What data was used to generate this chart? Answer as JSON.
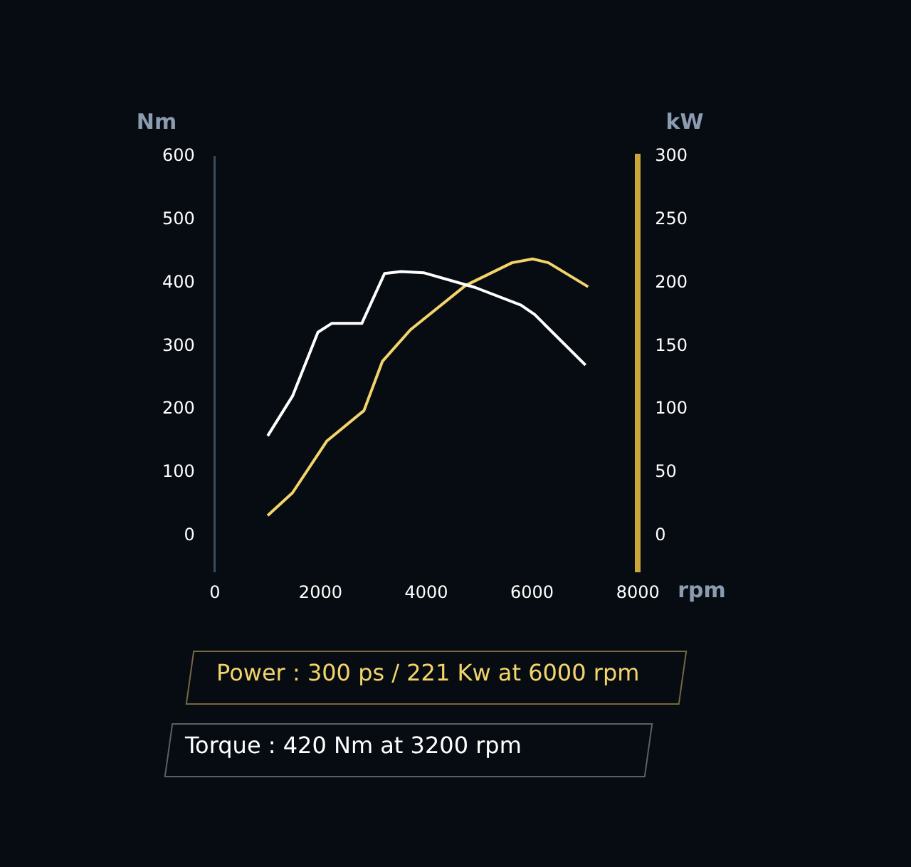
{
  "chart_data": {
    "type": "line",
    "xlabel": "rpm",
    "ylabel": "Nm",
    "y2label": "kW",
    "xlim": [
      0,
      8000
    ],
    "xticks": [
      0,
      2000,
      4000,
      6000,
      8000
    ],
    "ylim": [
      -57,
      600
    ],
    "yticks": [
      0,
      100,
      200,
      300,
      400,
      500,
      600
    ],
    "y2lim": [
      -28.5,
      300
    ],
    "y2ticks": [
      0,
      50,
      100,
      150,
      200,
      250,
      300
    ],
    "grid": false,
    "legend": false,
    "marker": "none",
    "line_style": "solid",
    "series": [
      {
        "color": "#ffffff",
        "x": [
          1000,
          1470,
          1950,
          2210,
          2780,
          3210,
          3520,
          3960,
          4920,
          5790,
          6050,
          7010
        ],
        "values": [
          158,
          221,
          322,
          336,
          336,
          415,
          418,
          416,
          393,
          365,
          350,
          270
        ]
      },
      {
        "color": "#f2d46a",
        "axis": "y2",
        "x": [
          1000,
          1470,
          2120,
          2820,
          3170,
          3700,
          4740,
          5620,
          6010,
          6310,
          7060
        ],
        "values": [
          16,
          34,
          75,
          99,
          138,
          163,
          198,
          216,
          219,
          216,
          197
        ]
      }
    ],
    "annotations": [
      "Power : 300 ps / 221 Kw at 6000 rpm",
      "Torque : 420 Nm at 3200 rpm"
    ]
  }
}
